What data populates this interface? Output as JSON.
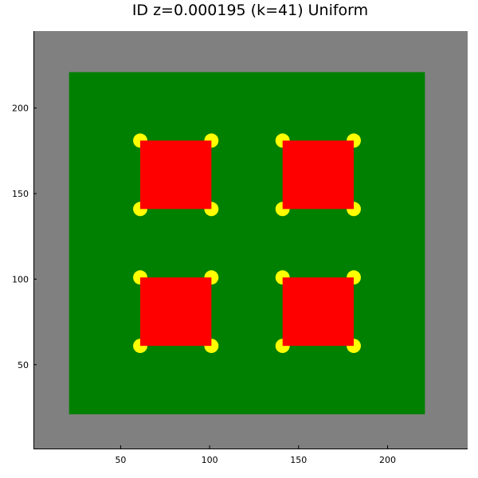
{
  "chart_data": {
    "type": "heatmap",
    "title": "ID z=0.000195 (k=41) Uniform",
    "xlabel": "",
    "ylabel": "",
    "xlim": [
      1,
      245
    ],
    "ylim": [
      1,
      245
    ],
    "grid": false,
    "legend": "none",
    "xticks": [
      50,
      100,
      150,
      200
    ],
    "yticks": [
      50,
      100,
      150,
      200
    ],
    "colors": {
      "background": "#808080",
      "region": "#008000",
      "block": "#ff0000",
      "corner": "#ffff00"
    },
    "region": {
      "x": [
        21,
        221
      ],
      "y": [
        21,
        221
      ]
    },
    "blocks": [
      {
        "x": [
          61,
          101
        ],
        "y": [
          141,
          181
        ]
      },
      {
        "x": [
          141,
          181
        ],
        "y": [
          141,
          181
        ]
      },
      {
        "x": [
          61,
          101
        ],
        "y": [
          61,
          101
        ]
      },
      {
        "x": [
          141,
          181
        ],
        "y": [
          61,
          101
        ]
      }
    ],
    "corner_radius": 4
  }
}
